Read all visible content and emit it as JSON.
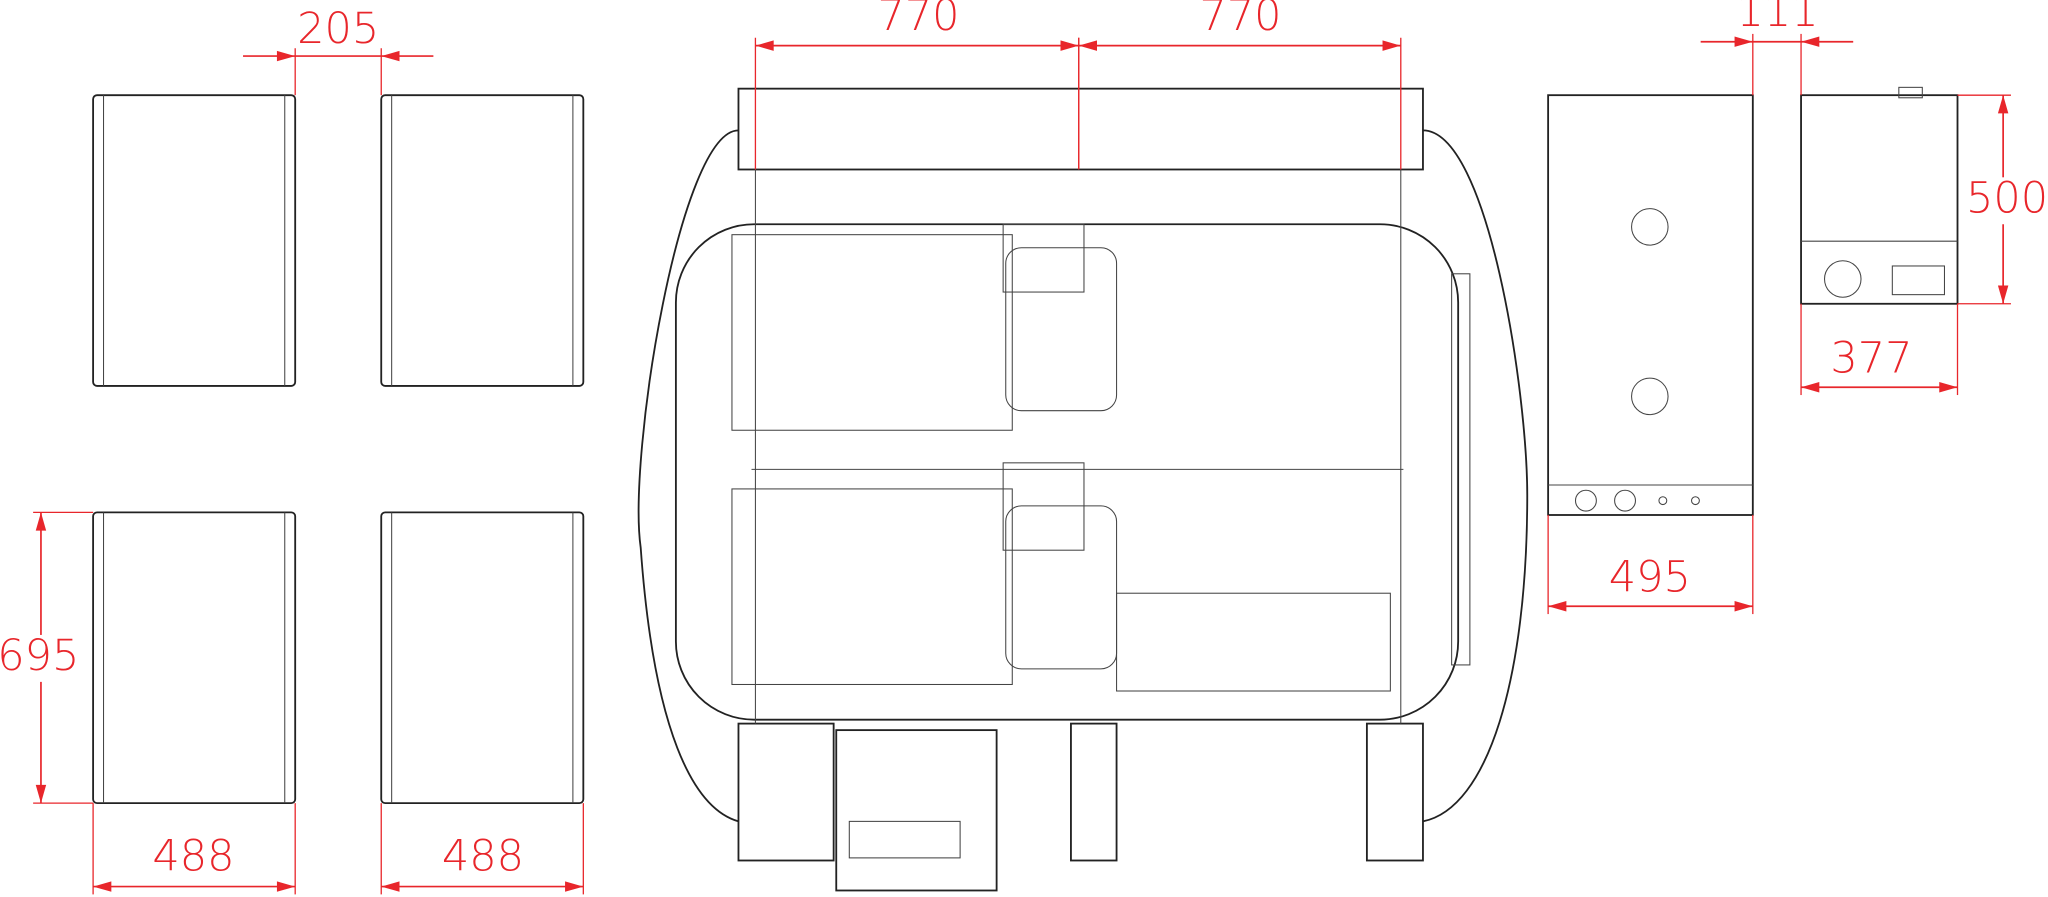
{
  "dimensions": [
    {
      "label": "205"
    },
    {
      "label": "770"
    },
    {
      "label": "770"
    },
    {
      "label": "111"
    },
    {
      "label": "500"
    },
    {
      "label": "377"
    },
    {
      "label": "495"
    },
    {
      "label": "695"
    },
    {
      "label": "488"
    },
    {
      "label": "488"
    }
  ]
}
